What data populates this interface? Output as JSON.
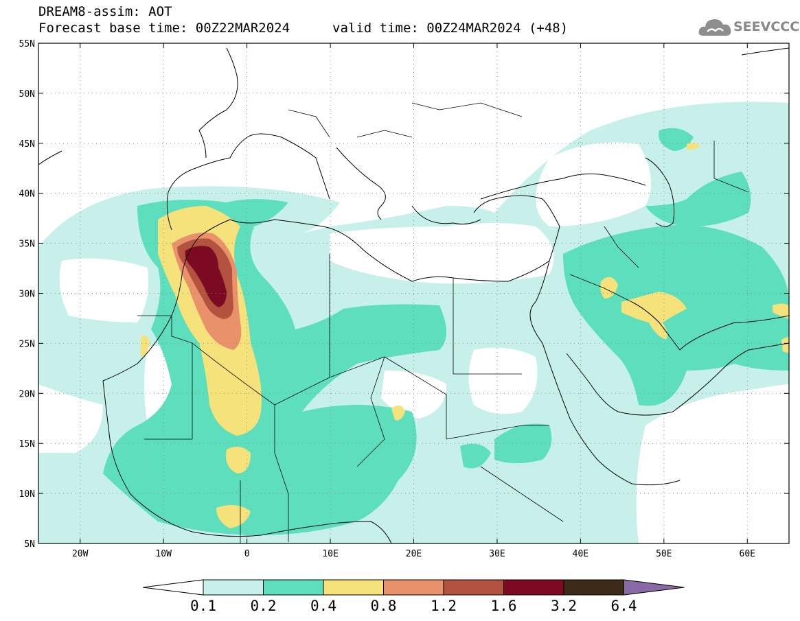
{
  "header": {
    "line1": "DREAM8-assim: AOT",
    "base_label": "Forecast base time: 00Z22MAR2024",
    "valid_label": "valid time: 00Z24MAR2024 (+48)"
  },
  "logo": {
    "text": "SEEVCCC",
    "icon": "cloud-icon"
  },
  "map": {
    "lat_labels": [
      "55N",
      "50N",
      "45N",
      "40N",
      "35N",
      "30N",
      "25N",
      "20N",
      "15N",
      "10N",
      "5N"
    ],
    "lat_values": [
      55,
      50,
      45,
      40,
      35,
      30,
      25,
      20,
      15,
      10,
      5
    ],
    "lon_labels": [
      "20W",
      "10W",
      "0",
      "10E",
      "20E",
      "30E",
      "40E",
      "50E",
      "60E"
    ],
    "lon_values": [
      -20,
      -10,
      0,
      10,
      20,
      30,
      40,
      50,
      60
    ],
    "lon_range": [
      -25,
      65
    ],
    "lat_range": [
      5,
      55
    ]
  },
  "colorbar": {
    "ticks": [
      "0.1",
      "0.2",
      "0.4",
      "0.8",
      "1.2",
      "1.6",
      "3.2",
      "6.4"
    ],
    "colors": [
      "#ffffff",
      "#c8f0ea",
      "#5ddfbd",
      "#f5e27a",
      "#e8916a",
      "#b3523f",
      "#7b0a22",
      "#3d2a18",
      "#8a6aa6"
    ]
  },
  "colors": {
    "c1": "#c8f0ea",
    "c2": "#5ddfbd",
    "c3": "#f5e27a",
    "c4": "#e8916a",
    "c5": "#b3523f",
    "c6": "#7b0a22"
  }
}
